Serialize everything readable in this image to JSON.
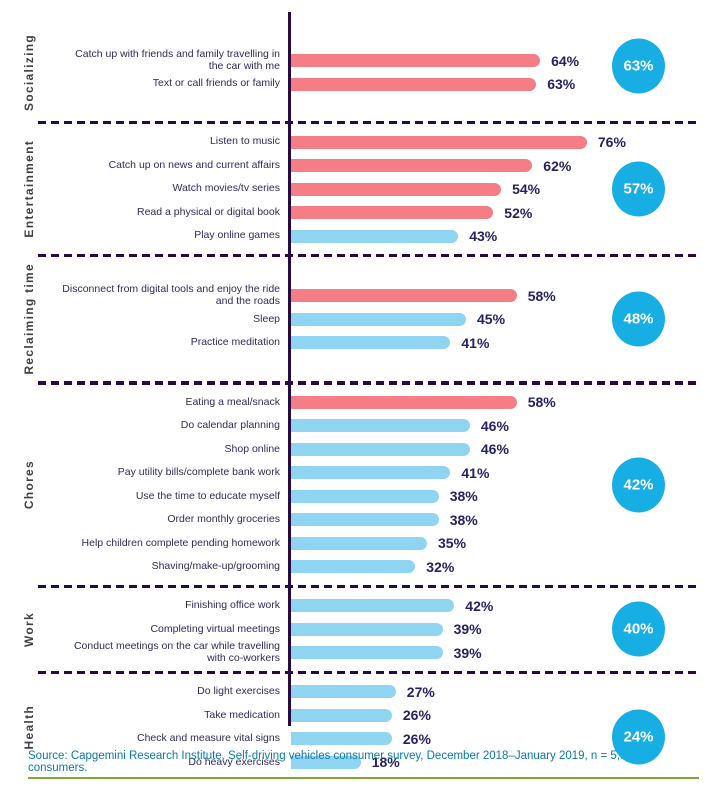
{
  "colors": {
    "bar_pink": "#F47D86",
    "bar_blue": "#8FD5F1",
    "badge_cyan": "#17AEE4",
    "axis_purple": "#270A40",
    "value_text": "#262262",
    "label_text": "#2F2B55",
    "category_text": "#3F3F46",
    "source_text": "#0B78A8",
    "rule_green": "#82A733"
  },
  "chart_data": {
    "type": "bar",
    "orientation": "horizontal",
    "unit": "%",
    "xlim": [
      0,
      100
    ],
    "legend": "none",
    "grid": false,
    "sections": [
      {
        "category": "Socializing",
        "average": 63,
        "items": [
          {
            "label": "Catch up with friends and family travelling in the car with me",
            "value": 64,
            "highlight": true
          },
          {
            "label": "Text or call friends or family",
            "value": 63,
            "highlight": true
          }
        ]
      },
      {
        "category": "Entertainment",
        "average": 57,
        "items": [
          {
            "label": "Listen to music",
            "value": 76,
            "highlight": true
          },
          {
            "label": "Catch up on news and current affairs",
            "value": 62,
            "highlight": true
          },
          {
            "label": "Watch movies/tv series",
            "value": 54,
            "highlight": true
          },
          {
            "label": "Read a physical or digital book",
            "value": 52,
            "highlight": true
          },
          {
            "label": "Play online games",
            "value": 43,
            "highlight": false
          }
        ]
      },
      {
        "category": "Reclaiming time",
        "average": 48,
        "items": [
          {
            "label": "Disconnect from digital tools and enjoy the ride and the roads",
            "value": 58,
            "highlight": true
          },
          {
            "label": "Sleep",
            "value": 45,
            "highlight": false
          },
          {
            "label": "Practice meditation",
            "value": 41,
            "highlight": false
          }
        ]
      },
      {
        "category": "Chores",
        "average": 42,
        "items": [
          {
            "label": "Eating a meal/snack",
            "value": 58,
            "highlight": true
          },
          {
            "label": "Do calendar planning",
            "value": 46,
            "highlight": false
          },
          {
            "label": "Shop online",
            "value": 46,
            "highlight": false
          },
          {
            "label": "Pay utility bills/complete bank work",
            "value": 41,
            "highlight": false
          },
          {
            "label": "Use the time to educate myself",
            "value": 38,
            "highlight": false
          },
          {
            "label": "Order monthly groceries",
            "value": 38,
            "highlight": false
          },
          {
            "label": "Help children complete pending homework",
            "value": 35,
            "highlight": false
          },
          {
            "label": "Shaving/make-up/grooming",
            "value": 32,
            "highlight": false
          }
        ]
      },
      {
        "category": "Work",
        "average": 40,
        "items": [
          {
            "label": "Finishing office work",
            "value": 42,
            "highlight": false
          },
          {
            "label": "Completing virtual meetings",
            "value": 39,
            "highlight": false
          },
          {
            "label": "Conduct meetings on the car while travelling with co-workers",
            "value": 39,
            "highlight": false
          }
        ]
      },
      {
        "category": "Health",
        "average": 24,
        "items": [
          {
            "label": "Do light exercises",
            "value": 27,
            "highlight": false
          },
          {
            "label": "Take medication",
            "value": 26,
            "highlight": false
          },
          {
            "label": "Check and measure vital signs",
            "value": 26,
            "highlight": false
          },
          {
            "label": "Do heavy exercises",
            "value": 18,
            "highlight": false
          }
        ]
      }
    ]
  },
  "footer": {
    "source": "Source: Capgemini Research Institute, Self-driving vehicles consumer survey, December 2018–January 2019, n = 5,538 consumers."
  }
}
